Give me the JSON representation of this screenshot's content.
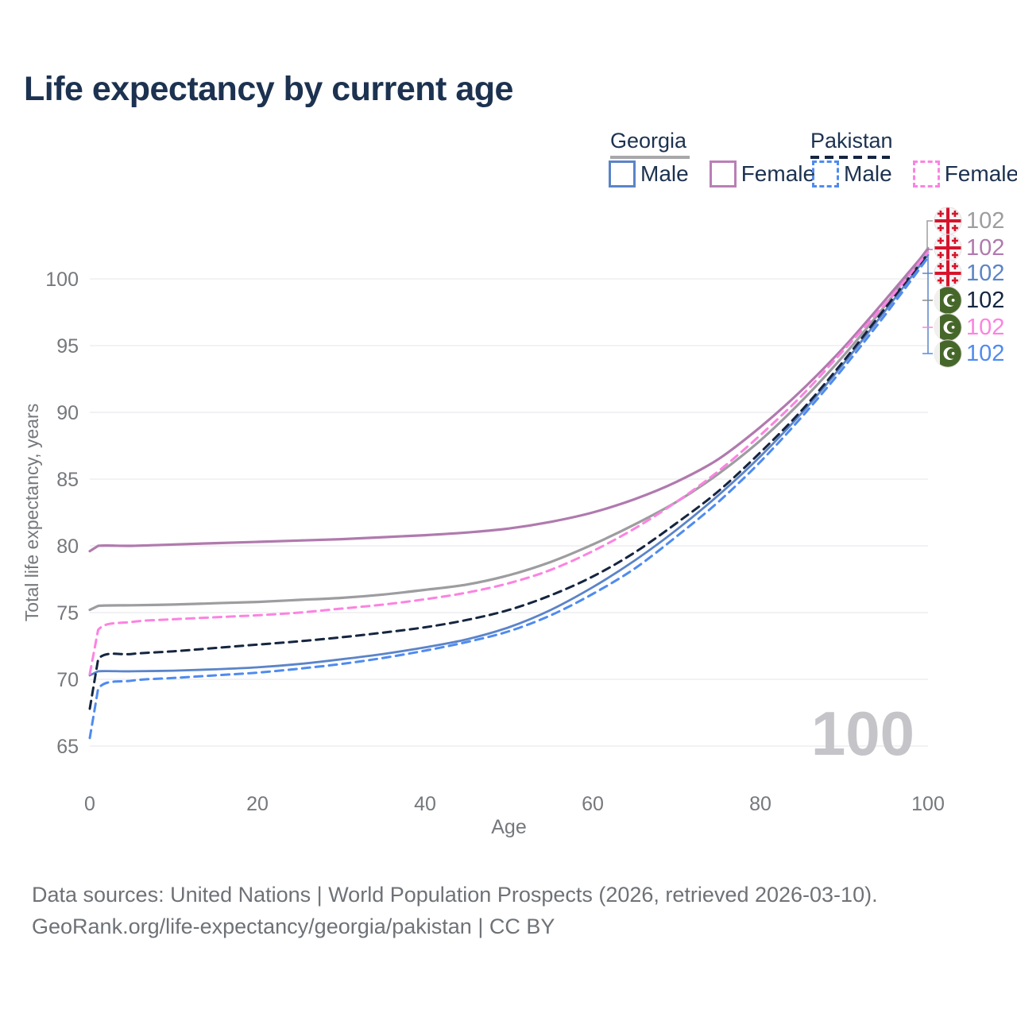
{
  "title": "Life expectancy by current age",
  "legend": {
    "groups": [
      {
        "country": "Georgia",
        "line_style": "solid",
        "line_color": "#9d9da1",
        "items": [
          {
            "label": "Male",
            "color": "#5b84c8"
          },
          {
            "label": "Female",
            "color": "#b97fb5"
          }
        ]
      },
      {
        "country": "Pakistan",
        "line_style": "dashed",
        "line_color": "#152540",
        "items": [
          {
            "label": "Male",
            "color": "#4f8bf0"
          },
          {
            "label": "Female",
            "color": "#fc83e2"
          }
        ]
      }
    ]
  },
  "chart_data": {
    "type": "line",
    "title": "Life expectancy by current age",
    "xlabel": "Age",
    "ylabel": "Total life expectancy, years",
    "xlim": [
      0,
      100
    ],
    "ylim": [
      65,
      102.5
    ],
    "x_ticks": [
      0,
      20,
      40,
      60,
      80,
      100
    ],
    "y_ticks": [
      65,
      70,
      75,
      80,
      85,
      90,
      95,
      100
    ],
    "grid": "horizontal",
    "legend_position": "top-right",
    "x": [
      0,
      1,
      5,
      10,
      15,
      20,
      25,
      30,
      35,
      40,
      45,
      50,
      55,
      60,
      65,
      70,
      75,
      80,
      85,
      90,
      95,
      100
    ],
    "series": [
      {
        "id": "georgia-male",
        "name": "Georgia Male",
        "country": "Georgia",
        "sex": "male",
        "color": "#5b84c8",
        "dash": "solid",
        "width": 2.8,
        "values": [
          70.3,
          70.6,
          70.6,
          70.65,
          70.75,
          70.9,
          71.15,
          71.5,
          71.9,
          72.4,
          73.0,
          73.9,
          75.2,
          76.9,
          78.9,
          81.2,
          83.8,
          86.7,
          90.0,
          93.7,
          97.7,
          101.8
        ]
      },
      {
        "id": "georgia-both",
        "name": "Georgia",
        "country": "Georgia",
        "sex": "both",
        "color": "#9d9da1",
        "dash": "solid",
        "width": 3.2,
        "values": [
          75.2,
          75.5,
          75.55,
          75.6,
          75.7,
          75.8,
          75.95,
          76.1,
          76.35,
          76.7,
          77.1,
          77.8,
          78.8,
          80.1,
          81.6,
          83.3,
          85.4,
          87.9,
          90.9,
          94.3,
          98.1,
          102.3
        ]
      },
      {
        "id": "georgia-female",
        "name": "Georgia Female",
        "country": "Georgia",
        "sex": "female",
        "color": "#b07aae",
        "dash": "solid",
        "width": 3.2,
        "values": [
          79.6,
          80.0,
          80.0,
          80.1,
          80.2,
          80.3,
          80.4,
          80.5,
          80.65,
          80.8,
          81.0,
          81.3,
          81.8,
          82.5,
          83.5,
          84.8,
          86.5,
          88.9,
          91.7,
          94.9,
          98.5,
          102.2
        ]
      },
      {
        "id": "pakistan-male",
        "name": "Pakistan Male",
        "country": "Pakistan",
        "sex": "male",
        "color": "#4f8bf0",
        "dash": "dashed",
        "width": 3,
        "values": [
          65.6,
          69.3,
          69.9,
          70.1,
          70.3,
          70.5,
          70.8,
          71.15,
          71.6,
          72.15,
          72.8,
          73.6,
          74.8,
          76.4,
          78.3,
          80.7,
          83.3,
          86.3,
          89.7,
          93.4,
          97.4,
          101.6
        ]
      },
      {
        "id": "pakistan-both",
        "name": "Pakistan",
        "country": "Pakistan",
        "sex": "both",
        "color": "#152540",
        "dash": "dashed",
        "width": 3,
        "values": [
          67.8,
          71.5,
          71.9,
          72.1,
          72.35,
          72.6,
          72.85,
          73.15,
          73.5,
          73.9,
          74.45,
          75.2,
          76.3,
          77.7,
          79.5,
          81.7,
          84.1,
          87.0,
          90.2,
          93.9,
          97.9,
          101.9
        ]
      },
      {
        "id": "pakistan-female",
        "name": "Pakistan Female",
        "country": "Pakistan",
        "sex": "female",
        "color": "#fc83e1",
        "dash": "dashed",
        "width": 3,
        "values": [
          70.4,
          73.7,
          74.3,
          74.5,
          74.65,
          74.8,
          75.0,
          75.3,
          75.6,
          76.0,
          76.5,
          77.2,
          78.2,
          79.6,
          81.3,
          83.3,
          85.6,
          88.3,
          91.3,
          94.7,
          98.2,
          102.0
        ]
      }
    ]
  },
  "end_labels": [
    {
      "flag": "georgia",
      "value": "102",
      "color": "#9d9da1"
    },
    {
      "flag": "georgia",
      "value": "102",
      "color": "#b07aae"
    },
    {
      "flag": "georgia",
      "value": "102",
      "color": "#5b84c8"
    },
    {
      "flag": "pakistan",
      "value": "102",
      "color": "#152540"
    },
    {
      "flag": "pakistan",
      "value": "102",
      "color": "#fc83e1"
    },
    {
      "flag": "pakistan",
      "value": "102",
      "color": "#4f8bf0"
    }
  ],
  "watermark": "100",
  "footer": {
    "line1": "Data sources: United Nations | World Population Prospects (2026, retrieved 2026-03-10).",
    "line2": "GeoRank.org/life-expectancy/georgia/pakistan | CC BY"
  },
  "colors": {
    "title_text": "#1c3250",
    "axis_text": "#75787c",
    "gridline": "#ebebee",
    "watermark": "#c5c5c9",
    "footer_text": "#6e7277"
  }
}
